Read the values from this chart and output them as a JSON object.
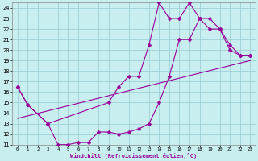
{
  "xlabel": "Windchill (Refroidissement éolien,°C)",
  "background_color": "#c8eef0",
  "grid_color": "#a0d0d8",
  "line_color": "#990099",
  "xlim": [
    -0.5,
    23.5
  ],
  "ylim": [
    11,
    24.5
  ],
  "xticks": [
    0,
    1,
    2,
    3,
    4,
    5,
    6,
    7,
    8,
    9,
    10,
    11,
    12,
    13,
    14,
    15,
    16,
    17,
    18,
    19,
    20,
    21,
    22,
    23
  ],
  "yticks": [
    11,
    12,
    13,
    14,
    15,
    16,
    17,
    18,
    19,
    20,
    21,
    22,
    23,
    24
  ],
  "line1_x": [
    0,
    1,
    3,
    4,
    5,
    6,
    7,
    8,
    9,
    10,
    11,
    12,
    13,
    14,
    15,
    16,
    17,
    18,
    19,
    20,
    21,
    22,
    23
  ],
  "line1_y": [
    16.5,
    14.8,
    13.0,
    11.0,
    11.0,
    11.2,
    11.2,
    12.2,
    12.2,
    12.0,
    12.2,
    12.5,
    13.0,
    15.0,
    17.5,
    21.0,
    21.0,
    23.0,
    23.0,
    22.0,
    20.5,
    19.5,
    19.5
  ],
  "line2_x": [
    0,
    1,
    3,
    9,
    10,
    11,
    12,
    13,
    14,
    15,
    16,
    17,
    18,
    19,
    20,
    21,
    22,
    23
  ],
  "line2_y": [
    16.5,
    14.8,
    13.0,
    15.0,
    16.5,
    17.5,
    17.5,
    20.5,
    24.5,
    23.0,
    23.0,
    24.5,
    23.0,
    22.0,
    22.0,
    20.0,
    19.5,
    19.5
  ],
  "line3_x": [
    0,
    23
  ],
  "line3_y": [
    13.5,
    19.0
  ]
}
